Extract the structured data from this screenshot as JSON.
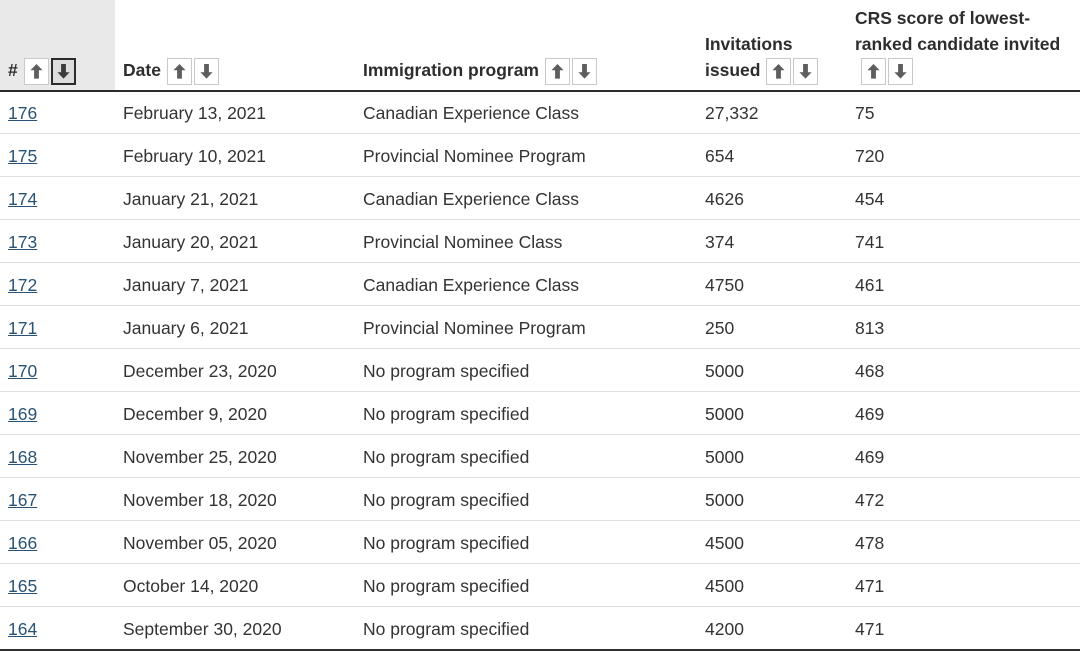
{
  "table": {
    "columns": [
      {
        "label": "#"
      },
      {
        "label": "Date"
      },
      {
        "label": "Immigration program"
      },
      {
        "label": "Invitations issued"
      },
      {
        "label": "CRS score of lowest-ranked candidate invited"
      }
    ],
    "sort_state": {
      "column": "#",
      "direction": "descending"
    },
    "icons": {
      "sort_ascending": "arrow-up",
      "sort_descending": "arrow-down"
    },
    "rows": [
      {
        "num": "176",
        "date": "February 13, 2021",
        "program": "Canadian Experience Class",
        "invitations": "27,332",
        "crs": "75"
      },
      {
        "num": "175",
        "date": "February 10, 2021",
        "program": "Provincial Nominee Program",
        "invitations": "654",
        "crs": "720"
      },
      {
        "num": "174",
        "date": "January 21, 2021",
        "program": "Canadian Experience Class",
        "invitations": "4626",
        "crs": "454"
      },
      {
        "num": "173",
        "date": "January 20, 2021",
        "program": "Provincial Nominee Class",
        "invitations": "374",
        "crs": "741"
      },
      {
        "num": "172",
        "date": "January 7, 2021",
        "program": "Canadian Experience Class",
        "invitations": "4750",
        "crs": "461"
      },
      {
        "num": "171",
        "date": "January 6, 2021",
        "program": "Provincial Nominee Program",
        "invitations": "250",
        "crs": "813"
      },
      {
        "num": "170",
        "date": "December 23, 2020",
        "program": "No program specified",
        "invitations": "5000",
        "crs": "468"
      },
      {
        "num": "169",
        "date": "December 9, 2020",
        "program": "No program specified",
        "invitations": "5000",
        "crs": "469"
      },
      {
        "num": "168",
        "date": "November 25, 2020",
        "program": "No program specified",
        "invitations": "5000",
        "crs": "469"
      },
      {
        "num": "167",
        "date": "November 18, 2020",
        "program": "No program specified",
        "invitations": "5000",
        "crs": "472"
      },
      {
        "num": "166",
        "date": "November 05, 2020",
        "program": "No program specified",
        "invitations": "4500",
        "crs": "478"
      },
      {
        "num": "165",
        "date": "October 14, 2020",
        "program": "No program specified",
        "invitations": "4500",
        "crs": "471"
      },
      {
        "num": "164",
        "date": "September 30, 2020",
        "program": "No program specified",
        "invitations": "4200",
        "crs": "471"
      }
    ],
    "colors": {
      "link": "#295376",
      "header_text": "#2d2d2d",
      "body_text": "#333333",
      "sorted_header_bg": "#e9e9e9",
      "active_sort_bg": "#dcdcdc",
      "active_sort_border": "#2b2b2b",
      "inactive_sort_border": "#c9c9c9",
      "row_divider": "#dfdfdf",
      "table_border": "#2b2b2b"
    }
  }
}
